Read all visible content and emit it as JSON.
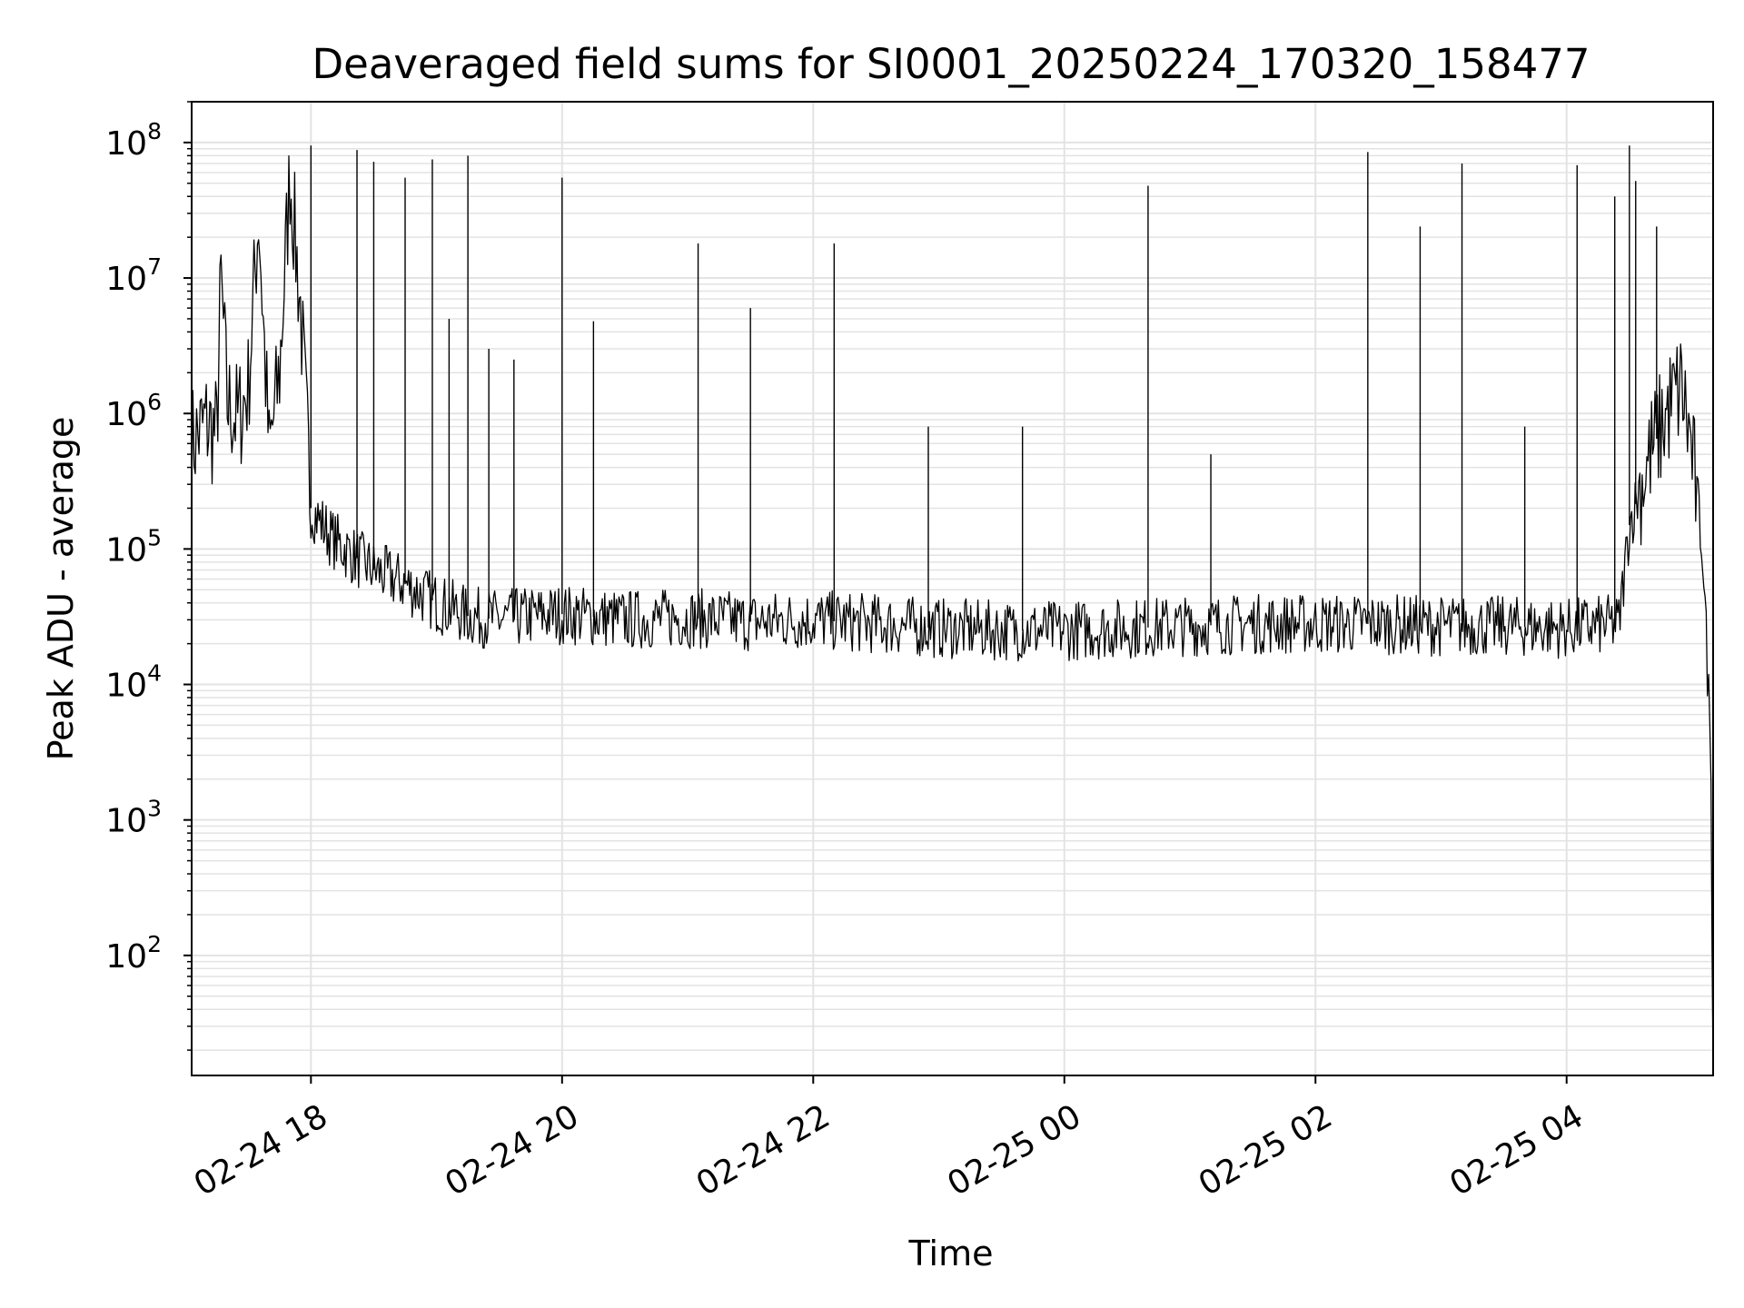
{
  "chart_data": {
    "type": "line",
    "title": "Deaveraged field sums for SI0001_20250224_170320_158477",
    "xlabel": "Time",
    "ylabel": "Peak ADU - average",
    "yscale": "log",
    "ylim": [
      13,
      200000000
    ],
    "xlim": [
      "2025-02-24 17:03",
      "2025-02-25 05:10"
    ],
    "grid": true,
    "line_color": "#000000",
    "xticks": [
      {
        "t": "2025-02-24 18:00",
        "label": "02-24 18"
      },
      {
        "t": "2025-02-24 20:00",
        "label": "02-24 20"
      },
      {
        "t": "2025-02-24 22:00",
        "label": "02-24 22"
      },
      {
        "t": "2025-02-25 00:00",
        "label": "02-25 00"
      },
      {
        "t": "2025-02-25 02:00",
        "label": "02-25 02"
      },
      {
        "t": "2025-02-25 04:00",
        "label": "02-25 04"
      }
    ],
    "yticks": [
      {
        "value": 100,
        "base": "10",
        "exp": "2"
      },
      {
        "value": 1000,
        "base": "10",
        "exp": "3"
      },
      {
        "value": 10000,
        "base": "10",
        "exp": "4"
      },
      {
        "value": 100000,
        "base": "10",
        "exp": "5"
      },
      {
        "value": 1000000,
        "base": "10",
        "exp": "6"
      },
      {
        "value": 10000000,
        "base": "10",
        "exp": "7"
      },
      {
        "value": 100000000,
        "base": "10",
        "exp": "8"
      }
    ],
    "series": [
      {
        "values_time": [
          "2025-02-24 17:03",
          "2025-02-24 17:10",
          "2025-02-24 17:15",
          "2025-02-24 17:17",
          "2025-02-24 17:20",
          "2025-02-24 17:25",
          "2025-02-24 17:30",
          "2025-02-24 17:35",
          "2025-02-24 17:40",
          "2025-02-24 17:45",
          "2025-02-24 17:50",
          "2025-02-24 17:55",
          "2025-02-24 18:00",
          "2025-02-24 18:10",
          "2025-02-24 18:20",
          "2025-02-24 18:30",
          "2025-02-24 18:45",
          "2025-02-24 19:00",
          "2025-02-24 19:15",
          "2025-02-24 19:30",
          "2025-02-24 19:45",
          "2025-02-24 20:00",
          "2025-02-24 20:30",
          "2025-02-24 21:00",
          "2025-02-24 21:30",
          "2025-02-24 22:00",
          "2025-02-24 22:30",
          "2025-02-24 23:00",
          "2025-02-24 23:30",
          "2025-02-25 00:00",
          "2025-02-25 00:30",
          "2025-02-25 01:00",
          "2025-02-25 01:30",
          "2025-02-25 02:00",
          "2025-02-25 02:30",
          "2025-02-25 03:00",
          "2025-02-25 03:30",
          "2025-02-25 04:00",
          "2025-02-25 04:25",
          "2025-02-25 04:30",
          "2025-02-25 04:40",
          "2025-02-25 04:50",
          "2025-02-25 04:55",
          "2025-02-25 05:00",
          "2025-02-25 05:05",
          "2025-02-25 05:09",
          "2025-02-25 05:10"
        ],
        "values": [
          600000,
          850000,
          700000,
          10000000,
          1200000,
          900000,
          1500000,
          30000000,
          500000,
          2000000,
          60000000,
          6000000,
          200000,
          120000,
          90000,
          70000,
          55000,
          40000,
          32000,
          30000,
          32000,
          33000,
          30000,
          31000,
          29000,
          30000,
          28000,
          26000,
          25000,
          25000,
          26000,
          27000,
          28000,
          28000,
          28000,
          27000,
          27000,
          26000,
          28000,
          150000,
          500000,
          1200000,
          1600000,
          500000,
          100000,
          3000,
          13
        ]
      }
    ],
    "spikes": [
      {
        "t": "2025-02-24 18:00",
        "value": 95000000
      },
      {
        "t": "2025-02-24 18:22",
        "value": 88000000
      },
      {
        "t": "2025-02-24 18:30",
        "value": 72000000
      },
      {
        "t": "2025-02-24 18:45",
        "value": 55000000
      },
      {
        "t": "2025-02-24 18:58",
        "value": 75000000
      },
      {
        "t": "2025-02-24 19:06",
        "value": 5000000
      },
      {
        "t": "2025-02-24 19:15",
        "value": 80000000
      },
      {
        "t": "2025-02-24 19:25",
        "value": 3000000
      },
      {
        "t": "2025-02-24 19:37",
        "value": 2500000
      },
      {
        "t": "2025-02-24 20:00",
        "value": 55000000
      },
      {
        "t": "2025-02-24 20:15",
        "value": 4800000
      },
      {
        "t": "2025-02-24 21:05",
        "value": 18000000
      },
      {
        "t": "2025-02-24 21:30",
        "value": 6000000
      },
      {
        "t": "2025-02-24 22:10",
        "value": 18000000
      },
      {
        "t": "2025-02-24 22:55",
        "value": 800000
      },
      {
        "t": "2025-02-24 23:40",
        "value": 800000
      },
      {
        "t": "2025-02-25 00:40",
        "value": 48000000
      },
      {
        "t": "2025-02-25 01:10",
        "value": 500000
      },
      {
        "t": "2025-02-25 02:25",
        "value": 85000000
      },
      {
        "t": "2025-02-25 02:50",
        "value": 24000000
      },
      {
        "t": "2025-02-25 03:10",
        "value": 70000000
      },
      {
        "t": "2025-02-25 03:40",
        "value": 800000
      },
      {
        "t": "2025-02-25 04:05",
        "value": 68000000
      },
      {
        "t": "2025-02-25 04:23",
        "value": 40000000
      },
      {
        "t": "2025-02-25 04:30",
        "value": 95000000
      },
      {
        "t": "2025-02-25 04:33",
        "value": 52000000
      },
      {
        "t": "2025-02-25 04:43",
        "value": 24000000
      }
    ]
  }
}
